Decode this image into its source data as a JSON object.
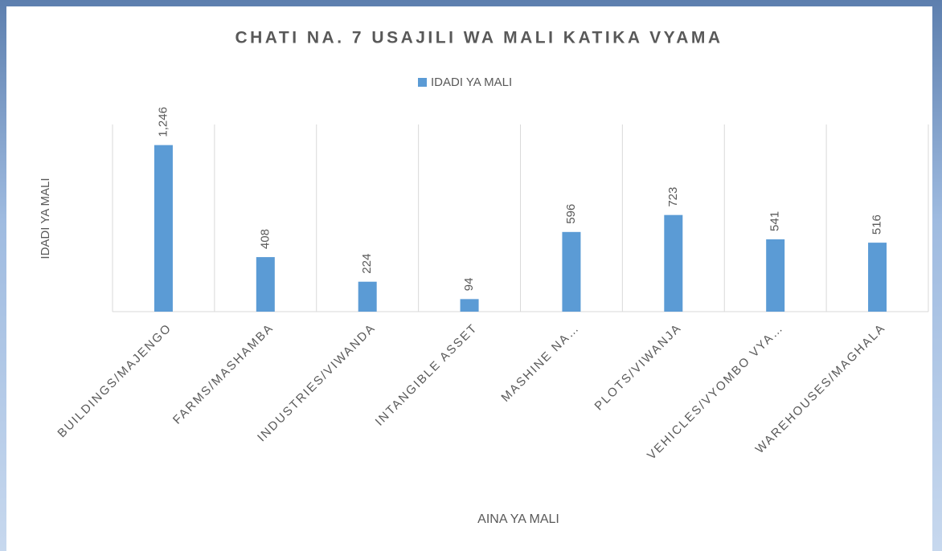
{
  "chart_data": {
    "type": "bar",
    "title": "CHATI NA. 7 USAJILI WA MALI KATIKA VYAMA",
    "x_label": "AINA YA MALI",
    "y_label": "IDADI YA MALI",
    "categories": [
      "BUILDINGS/MAJENGO",
      "FARMS/MASHAMBA",
      "INDUSTRIES/VIWANDA",
      "INTANGIBLE ASSET",
      "MASHINE NA…",
      "PLOTS/VIWANJA",
      "VEHICLES/VYOMBO VYA…",
      "WAREHOUSES/MAGHALA"
    ],
    "series": [
      {
        "name": "IDADI YA MALI",
        "color": "#5b9bd5",
        "values": [
          1246,
          408,
          224,
          94,
          596,
          723,
          541,
          516
        ],
        "value_labels": [
          "1,246",
          "408",
          "224",
          "94",
          "596",
          "723",
          "541",
          "516"
        ]
      }
    ],
    "ylim": [
      0,
      1400
    ],
    "legend": "top"
  }
}
